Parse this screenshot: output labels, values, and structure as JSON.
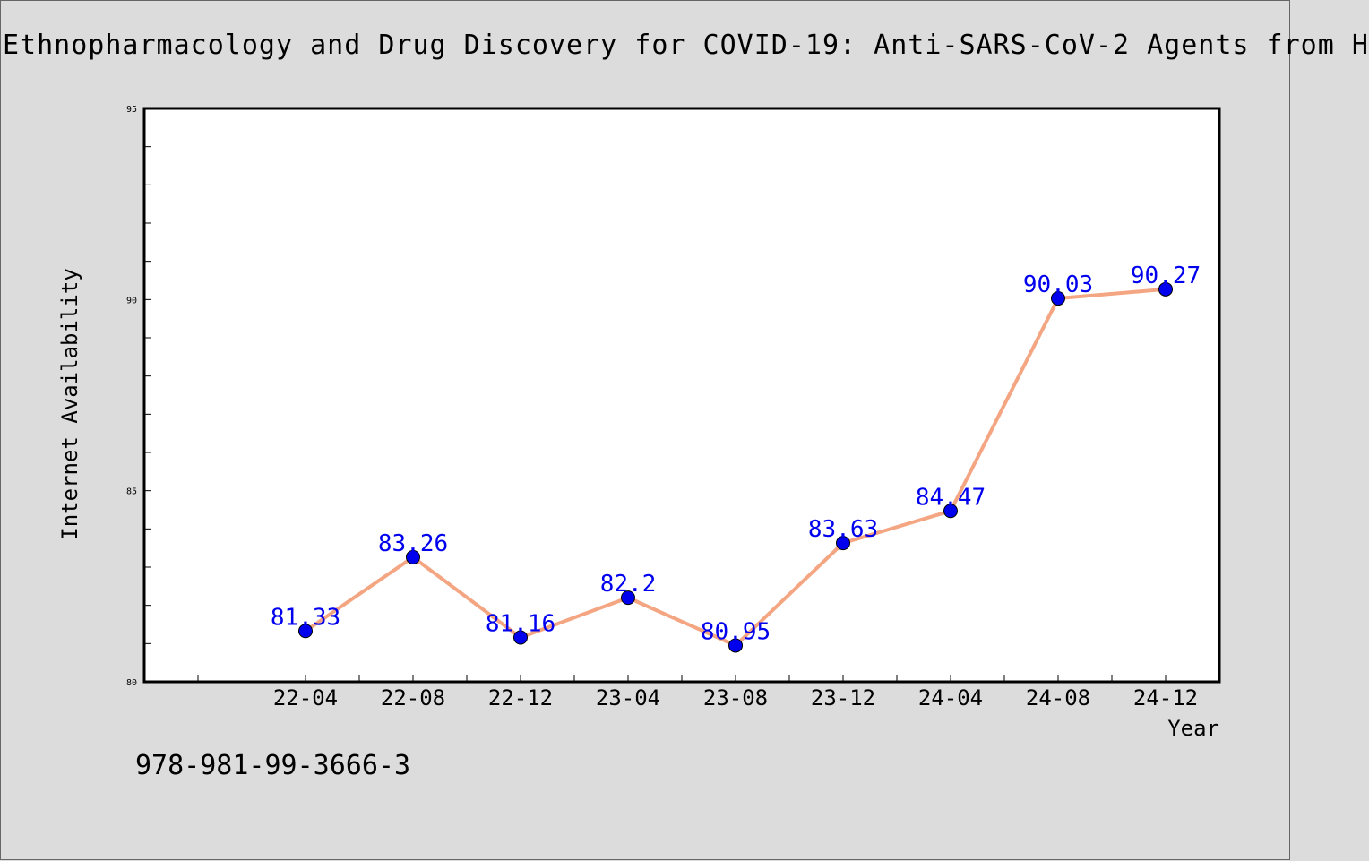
{
  "chart_data": {
    "type": "line",
    "title": "Ethnopharmacology and Drug Discovery for COVID-19: Anti-SARS-CoV-2 Agents from H",
    "xlabel": "Year",
    "ylabel": "Internet Availability",
    "categories": [
      "22-04",
      "22-08",
      "22-12",
      "23-04",
      "23-08",
      "23-12",
      "24-04",
      "24-08",
      "24-12"
    ],
    "values": [
      81.33,
      83.26,
      81.16,
      82.2,
      80.95,
      83.63,
      84.47,
      90.03,
      90.27
    ],
    "value_labels": [
      "81.33",
      "83.26",
      "81.16",
      "82.2",
      "80.95",
      "83.63",
      "84.47",
      "90.03",
      "90.27"
    ],
    "ylim": [
      80,
      95
    ],
    "yticks": [
      "80",
      "85",
      "90",
      "95"
    ],
    "grid": false,
    "legend": "none",
    "line_color": "#f4a582",
    "marker_color": "#0000ee",
    "label_color": "#0000ee"
  },
  "footer": {
    "isbn": "978-981-99-3666-3"
  }
}
